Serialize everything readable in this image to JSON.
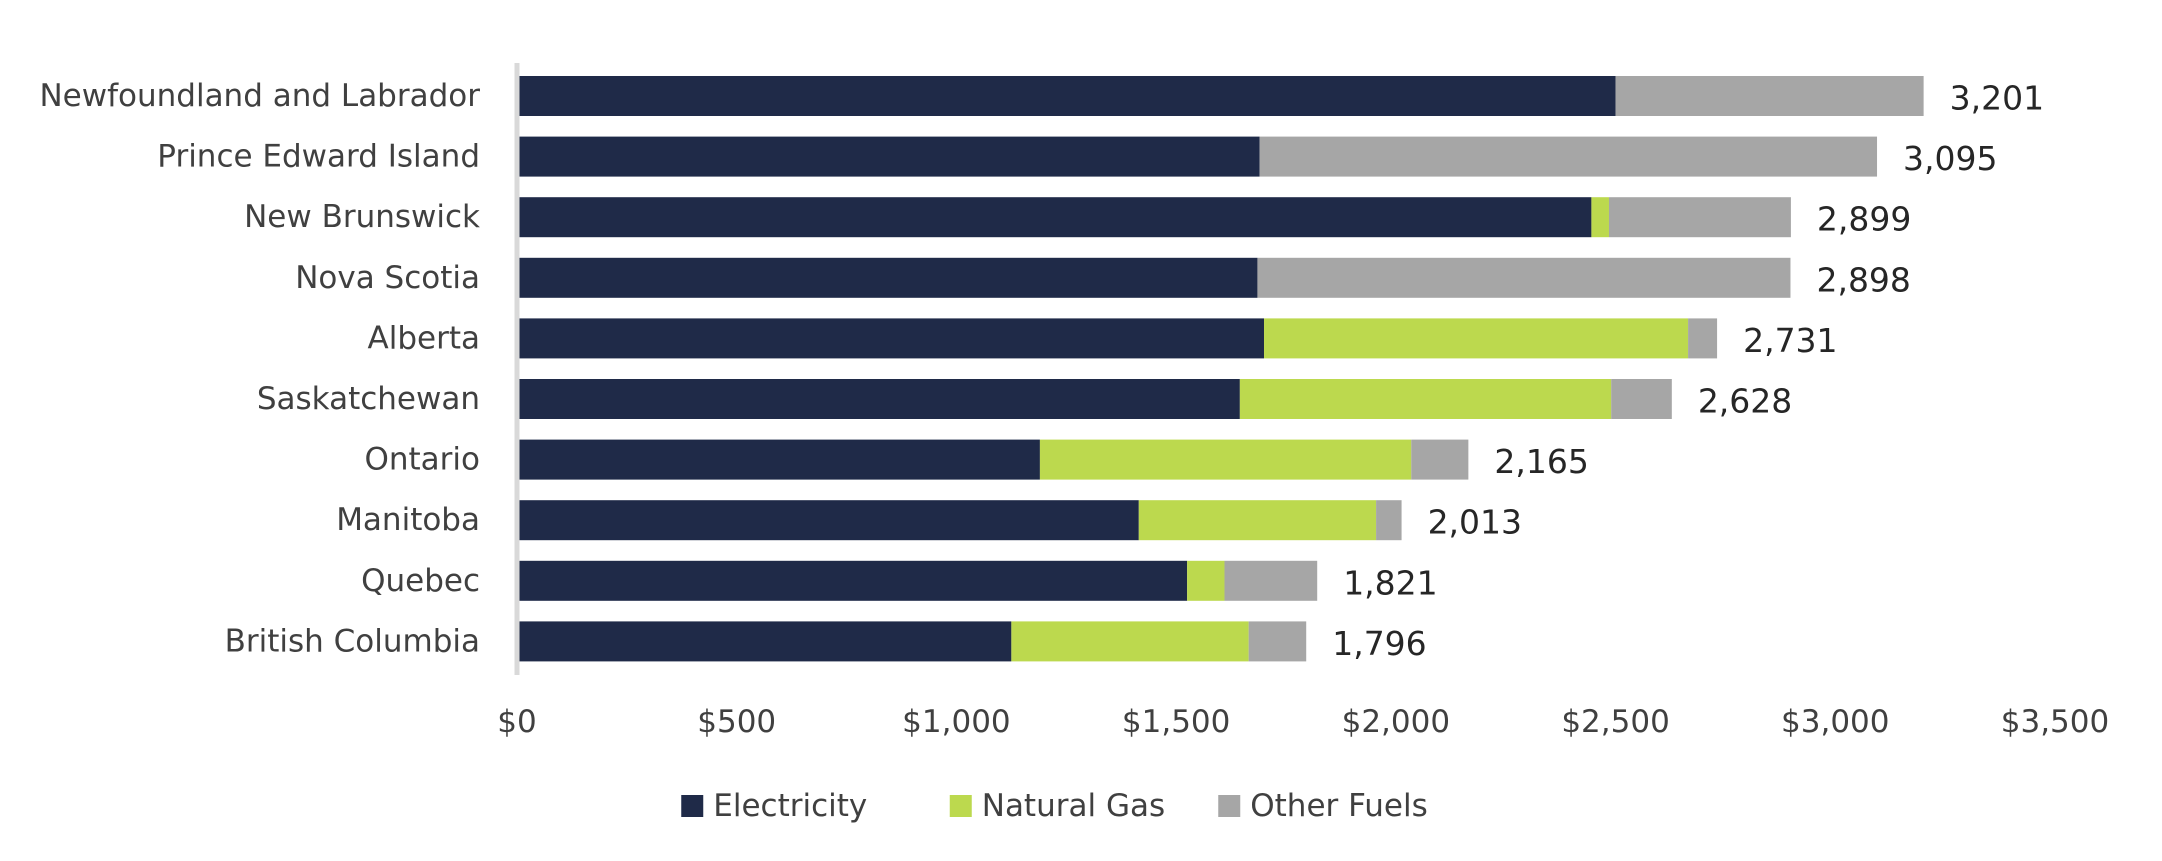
{
  "chart_data": {
    "type": "bar",
    "orientation": "horizontal",
    "stacked": true,
    "title": "",
    "xlabel": "",
    "ylabel": "",
    "categories": [
      "Newfoundland and Labrador",
      "Prince Edward Island",
      "New Brunswick",
      "Nova Scotia",
      "Alberta",
      "Saskatchewan",
      "Ontario",
      "Manitoba",
      "Quebec",
      "British Columbia"
    ],
    "series": [
      {
        "name": "Electricity",
        "color": "#1f2a48",
        "values": [
          2500,
          1690,
          2445,
          1685,
          1700,
          1645,
          1190,
          1415,
          1525,
          1125
        ]
      },
      {
        "name": "Natural Gas",
        "color": "#bcd94e",
        "values": [
          0,
          0,
          40,
          0,
          965,
          845,
          845,
          540,
          85,
          540
        ]
      },
      {
        "name": "Other Fuels",
        "color": "#a6a6a6",
        "values": [
          701,
          1405,
          414,
          1213,
          66,
          138,
          130,
          58,
          211,
          131
        ]
      }
    ],
    "totals": [
      "3,201",
      "3,095",
      "2,899",
      "2,898",
      "2,731",
      "2,628",
      "2,165",
      "2,013",
      "1,821",
      "1,796"
    ],
    "xlim": [
      0,
      3500
    ],
    "xticks": [
      0,
      500,
      1000,
      1500,
      2000,
      2500,
      3000,
      3500
    ],
    "xtick_labels": [
      "$0",
      "$500",
      "$1,000",
      "$1,500",
      "$2,000",
      "$2,500",
      "$3,000",
      "$3,500"
    ],
    "grid": false,
    "legend": {
      "position": "bottom",
      "entries": [
        "Electricity",
        "Natural Gas",
        "Other Fuels"
      ]
    }
  }
}
